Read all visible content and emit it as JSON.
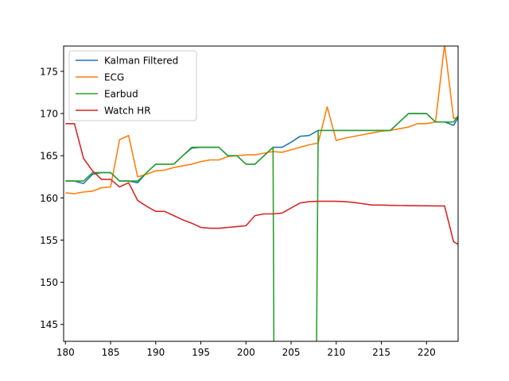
{
  "chart_data": {
    "type": "line",
    "title": "",
    "xlabel": "",
    "ylabel": "",
    "xlim": [
      179.8,
      223.5
    ],
    "ylim": [
      143,
      178
    ],
    "xticks": [
      180,
      185,
      190,
      195,
      200,
      205,
      210,
      215,
      220
    ],
    "yticks": [
      145,
      150,
      155,
      160,
      165,
      170,
      175
    ],
    "legend_position": "top-left",
    "grid": false,
    "series": [
      {
        "name": "Kalman Filtered",
        "color": "#1f77b4",
        "points": [
          [
            180,
            162.0
          ],
          [
            181,
            162.0
          ],
          [
            182,
            161.7
          ],
          [
            183,
            162.8
          ],
          [
            184,
            163.0
          ],
          [
            185,
            163.0
          ],
          [
            186,
            162.0
          ],
          [
            187,
            162.0
          ],
          [
            188,
            161.8
          ],
          [
            189,
            163.0
          ],
          [
            190,
            164.0
          ],
          [
            191,
            164.0
          ],
          [
            192,
            164.0
          ],
          [
            193,
            165.0
          ],
          [
            194,
            165.9
          ],
          [
            195,
            166.0
          ],
          [
            196,
            166.0
          ],
          [
            197,
            166.0
          ],
          [
            198,
            165.0
          ],
          [
            199,
            165.0
          ],
          [
            200,
            164.0
          ],
          [
            201,
            164.0
          ],
          [
            202,
            165.0
          ],
          [
            203,
            166.0
          ],
          [
            204,
            166.0
          ],
          [
            205,
            166.6
          ],
          [
            206,
            167.3
          ],
          [
            207,
            167.4
          ],
          [
            208,
            168.0
          ],
          [
            209,
            168.0
          ],
          [
            210,
            168.0
          ],
          [
            211,
            168.0
          ],
          [
            212,
            168.0
          ],
          [
            213,
            168.0
          ],
          [
            214,
            168.0
          ],
          [
            215,
            168.0
          ],
          [
            216,
            168.0
          ],
          [
            217,
            169.0
          ],
          [
            218,
            170.0
          ],
          [
            219,
            170.0
          ],
          [
            220,
            170.0
          ],
          [
            221,
            169.0
          ],
          [
            222,
            169.0
          ],
          [
            223,
            168.6
          ],
          [
            223.5,
            169.5
          ]
        ]
      },
      {
        "name": "ECG",
        "color": "#ff7f0e",
        "points": [
          [
            180,
            160.6
          ],
          [
            181,
            160.5
          ],
          [
            182,
            160.7
          ],
          [
            183,
            160.8
          ],
          [
            184,
            161.2
          ],
          [
            185,
            161.3
          ],
          [
            186,
            166.9
          ],
          [
            187,
            167.4
          ],
          [
            188,
            162.5
          ],
          [
            189,
            162.8
          ],
          [
            190,
            163.2
          ],
          [
            191,
            163.3
          ],
          [
            192,
            163.6
          ],
          [
            193,
            163.8
          ],
          [
            194,
            164.0
          ],
          [
            195,
            164.3
          ],
          [
            196,
            164.5
          ],
          [
            197,
            164.5
          ],
          [
            198,
            164.9
          ],
          [
            199,
            165.0
          ],
          [
            200,
            165.1
          ],
          [
            201,
            165.1
          ],
          [
            202,
            165.3
          ],
          [
            203,
            165.5
          ],
          [
            204,
            165.4
          ],
          [
            205,
            165.7
          ],
          [
            206,
            166.0
          ],
          [
            207,
            166.3
          ],
          [
            208,
            166.5
          ],
          [
            209,
            170.8
          ],
          [
            210,
            166.8
          ],
          [
            211,
            167.1
          ],
          [
            212,
            167.3
          ],
          [
            213,
            167.5
          ],
          [
            214,
            167.7
          ],
          [
            215,
            167.9
          ],
          [
            216,
            168.0
          ],
          [
            217,
            168.2
          ],
          [
            218,
            168.4
          ],
          [
            219,
            168.8
          ],
          [
            220,
            168.8
          ],
          [
            221,
            169.0
          ],
          [
            222,
            178.2
          ],
          [
            223,
            169.4
          ],
          [
            223.5,
            169.6
          ]
        ]
      },
      {
        "name": "Earbud",
        "color": "#2ca02c",
        "points": [
          [
            180,
            162.0
          ],
          [
            181,
            162.0
          ],
          [
            182,
            162.0
          ],
          [
            183,
            163.0
          ],
          [
            184,
            163.0
          ],
          [
            185,
            163.0
          ],
          [
            186,
            162.0
          ],
          [
            187,
            162.0
          ],
          [
            188,
            162.0
          ],
          [
            189,
            163.0
          ],
          [
            190,
            164.0
          ],
          [
            191,
            164.0
          ],
          [
            192,
            164.0
          ],
          [
            193,
            165.0
          ],
          [
            194,
            166.0
          ],
          [
            195,
            166.0
          ],
          [
            196,
            166.0
          ],
          [
            197,
            166.0
          ],
          [
            198,
            165.0
          ],
          [
            199,
            165.0
          ],
          [
            200,
            164.0
          ],
          [
            201,
            164.0
          ],
          [
            202,
            165.0
          ],
          [
            203,
            166.0
          ],
          [
            203.1,
            140.0
          ],
          [
            207.8,
            140.0
          ],
          [
            208,
            168.0
          ],
          [
            209,
            168.0
          ],
          [
            210,
            168.0
          ],
          [
            211,
            168.0
          ],
          [
            212,
            168.0
          ],
          [
            213,
            168.0
          ],
          [
            214,
            168.0
          ],
          [
            215,
            168.0
          ],
          [
            216,
            168.0
          ],
          [
            217,
            169.0
          ],
          [
            218,
            170.0
          ],
          [
            219,
            170.0
          ],
          [
            220,
            170.0
          ],
          [
            221,
            169.0
          ],
          [
            222,
            169.0
          ],
          [
            223,
            169.0
          ],
          [
            223.5,
            169.7
          ]
        ]
      },
      {
        "name": "Watch HR",
        "color": "#d62728",
        "points": [
          [
            180,
            168.8
          ],
          [
            181,
            168.8
          ],
          [
            182,
            164.7
          ],
          [
            183,
            163.2
          ],
          [
            184,
            162.2
          ],
          [
            185,
            162.2
          ],
          [
            186,
            161.3
          ],
          [
            187,
            161.8
          ],
          [
            188,
            159.7
          ],
          [
            189,
            159.0
          ],
          [
            190,
            158.4
          ],
          [
            191,
            158.4
          ],
          [
            192,
            157.9
          ],
          [
            193,
            157.4
          ],
          [
            194,
            157.0
          ],
          [
            195,
            156.5
          ],
          [
            196,
            156.4
          ],
          [
            197,
            156.4
          ],
          [
            198,
            156.5
          ],
          [
            199,
            156.6
          ],
          [
            200,
            156.7
          ],
          [
            201,
            157.9
          ],
          [
            202,
            158.1
          ],
          [
            203,
            158.1
          ],
          [
            204,
            158.2
          ],
          [
            205,
            158.8
          ],
          [
            206,
            159.4
          ],
          [
            207,
            159.55
          ],
          [
            208,
            159.6
          ],
          [
            209,
            159.6
          ],
          [
            210,
            159.6
          ],
          [
            211,
            159.55
          ],
          [
            212,
            159.45
          ],
          [
            213,
            159.3
          ],
          [
            214,
            159.15
          ],
          [
            215,
            159.15
          ],
          [
            216,
            159.12
          ],
          [
            217,
            159.1
          ],
          [
            218,
            159.08
          ],
          [
            219,
            159.07
          ],
          [
            220,
            159.06
          ],
          [
            221,
            159.05
          ],
          [
            222,
            159.05
          ],
          [
            223,
            154.8
          ],
          [
            223.5,
            154.5
          ]
        ]
      }
    ]
  }
}
